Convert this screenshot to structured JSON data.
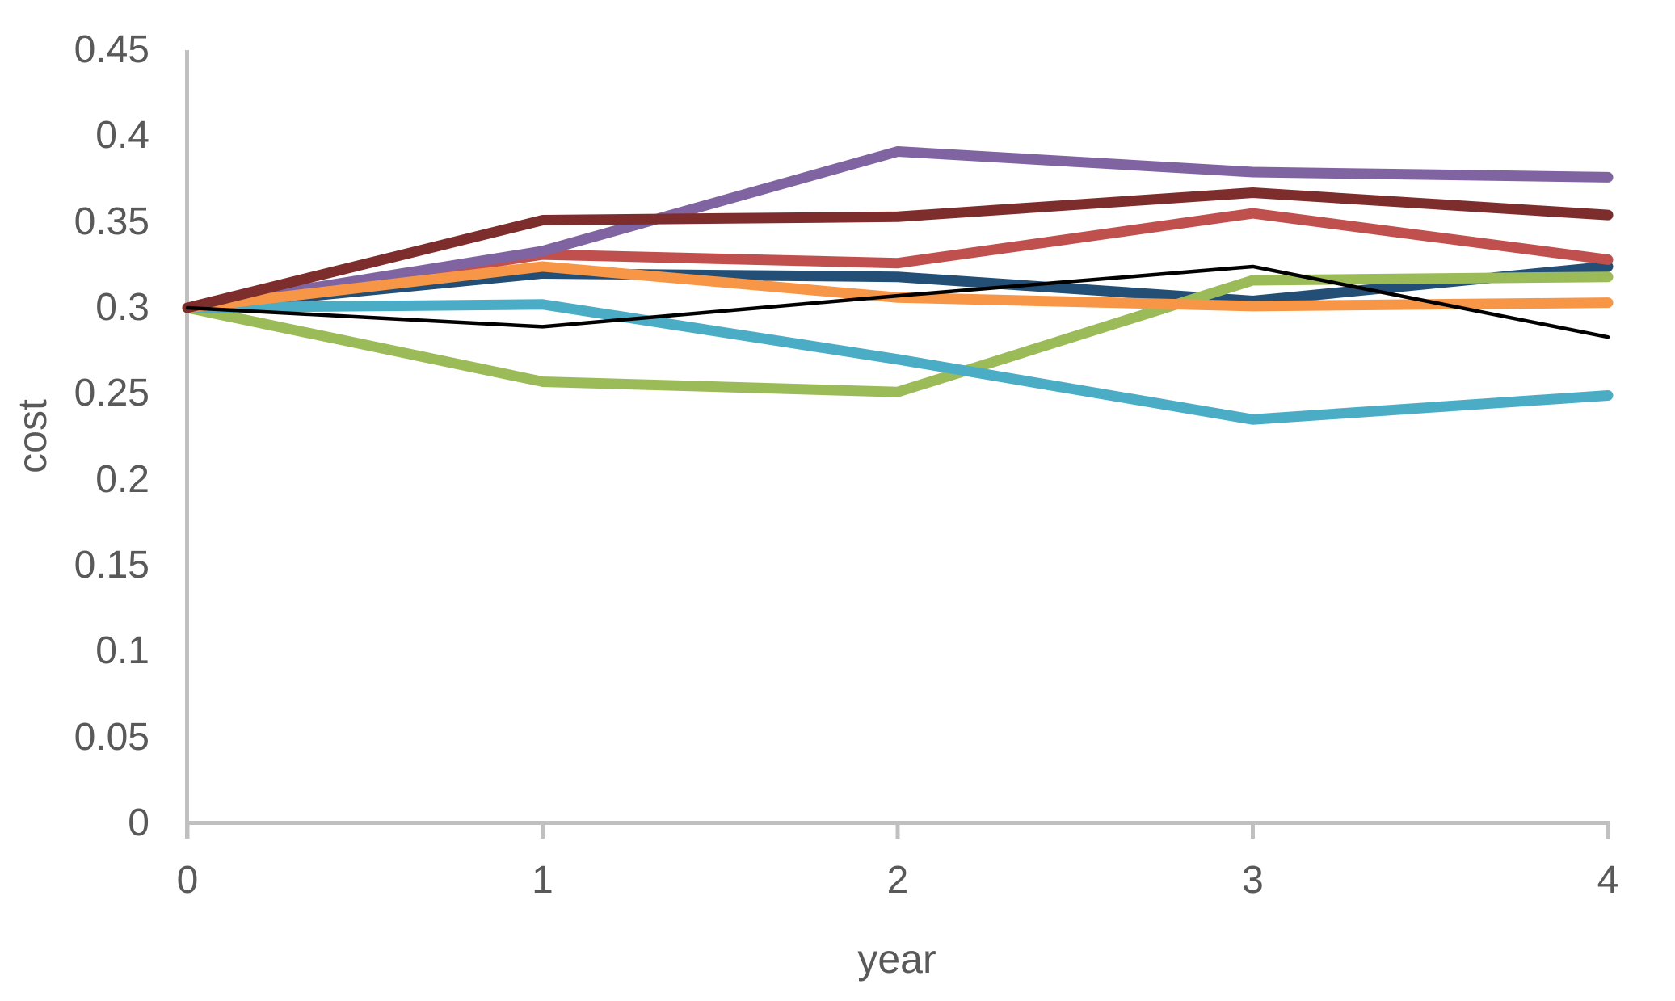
{
  "chart_data": {
    "type": "line",
    "title": "",
    "xlabel": "year",
    "ylabel": "cost",
    "x": [
      0,
      1,
      2,
      3,
      4
    ],
    "xlim": [
      0,
      4
    ],
    "ylim": [
      0,
      0.45
    ],
    "xtick_labels": [
      "0",
      "1",
      "2",
      "3",
      "4"
    ],
    "ytick_labels": [
      "0",
      "0.05",
      "0.1",
      "0.15",
      "0.2",
      "0.25",
      "0.3",
      "0.35",
      "0.4",
      "0.45"
    ],
    "ytick_values": [
      0,
      0.05,
      0.1,
      0.15,
      0.2,
      0.25,
      0.3,
      0.35,
      0.4,
      0.45
    ],
    "grid": false,
    "legend_position": "none",
    "axis_color": "#C0C0C0",
    "tick_label_color": "#595959",
    "series": [
      {
        "name": "dark-blue",
        "color": "#234E75",
        "stroke_width": 13,
        "values": [
          0.3,
          0.32,
          0.318,
          0.304,
          0.324
        ]
      },
      {
        "name": "red",
        "color": "#C0504D",
        "stroke_width": 13,
        "values": [
          0.3,
          0.331,
          0.326,
          0.355,
          0.328
        ]
      },
      {
        "name": "green",
        "color": "#9BBB59",
        "stroke_width": 13,
        "values": [
          0.3,
          0.257,
          0.251,
          0.316,
          0.318
        ]
      },
      {
        "name": "purple",
        "color": "#8064A2",
        "stroke_width": 13,
        "values": [
          0.3,
          0.333,
          0.391,
          0.379,
          0.376
        ]
      },
      {
        "name": "cyan",
        "color": "#4BACC6",
        "stroke_width": 13,
        "values": [
          0.3,
          0.302,
          0.27,
          0.235,
          0.249
        ]
      },
      {
        "name": "orange",
        "color": "#F79646",
        "stroke_width": 13,
        "values": [
          0.3,
          0.324,
          0.306,
          0.301,
          0.303
        ]
      },
      {
        "name": "dark-red",
        "color": "#7E2D2D",
        "stroke_width": 13,
        "values": [
          0.3,
          0.351,
          0.353,
          0.367,
          0.354
        ]
      },
      {
        "name": "black",
        "color": "#000000",
        "stroke_width": 4.5,
        "values": [
          0.3,
          0.289,
          0.307,
          0.324,
          0.283
        ]
      }
    ]
  }
}
